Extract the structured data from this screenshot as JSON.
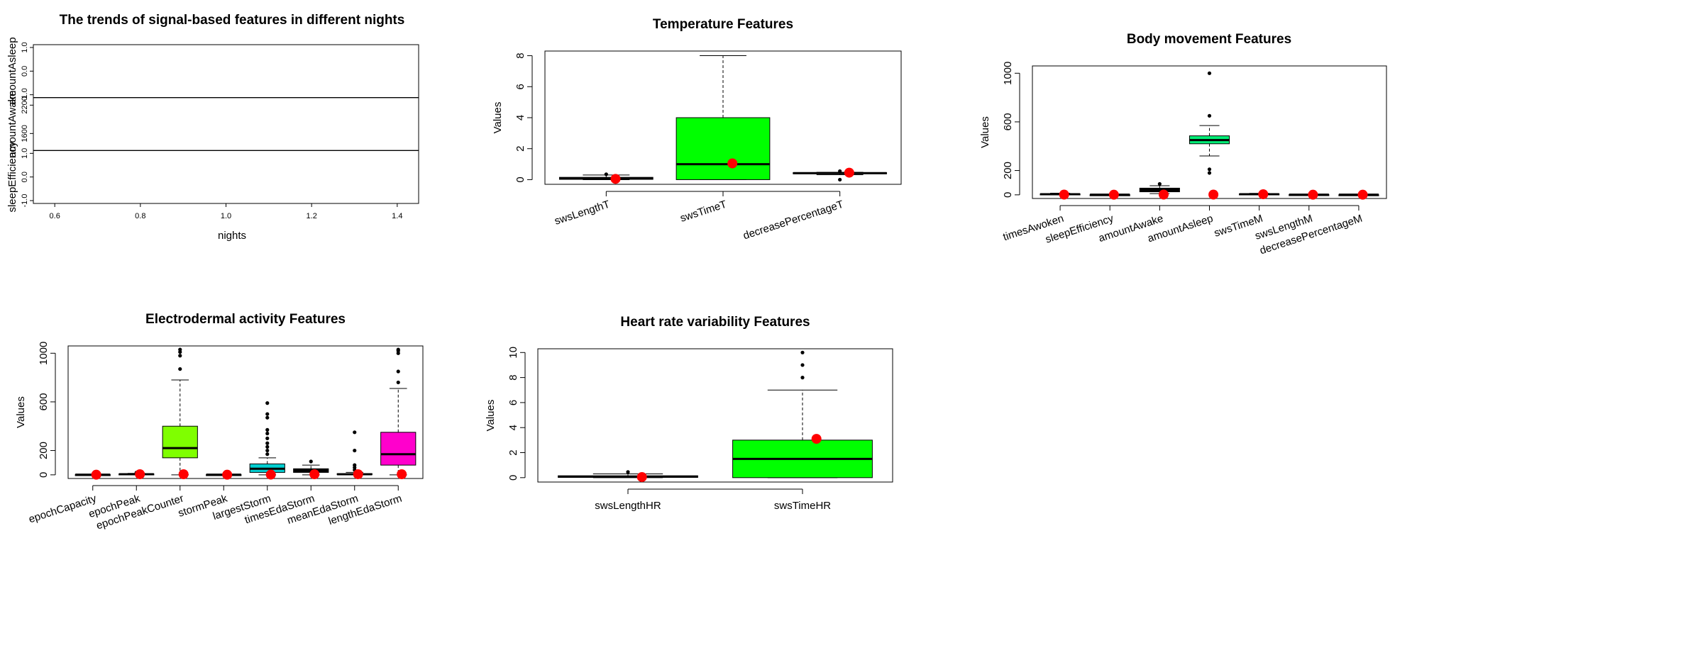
{
  "chart_data": [
    {
      "type": "line",
      "title": "The trends of signal-based features in different nights",
      "xlabel": "nights",
      "x_ticks": [
        0.6,
        0.8,
        1.0,
        1.2,
        1.4
      ],
      "xlim": [
        0.55,
        1.45
      ],
      "panels": [
        {
          "ylabel": "amountAsleep",
          "y_ticks": [
            "-1.0",
            "0.0",
            "1.0"
          ],
          "ylim": [
            -1,
            1
          ]
        },
        {
          "ylabel": "amountAwake",
          "y_ticks": [
            "1600",
            "2200"
          ],
          "ylim": [
            1300,
            2300
          ]
        },
        {
          "ylabel": "sleepEfficiency",
          "y_ticks": [
            "-1.0",
            "0.0",
            "1.0"
          ],
          "ylim": [
            -1,
            1
          ]
        }
      ]
    },
    {
      "type": "box",
      "title": "Temperature Features",
      "ylabel": "Values",
      "y_ticks": [
        0,
        2,
        4,
        6,
        8
      ],
      "ylim": [
        -0.3,
        8.3
      ],
      "categories": [
        "swsLengthT",
        "swsTimeT",
        "decreasePercentageT"
      ],
      "colors": [
        "#000000",
        "#00ff00",
        "#000000"
      ],
      "boxes": [
        {
          "min": 0.0,
          "q1": 0.02,
          "median": 0.08,
          "q3": 0.15,
          "max": 0.3,
          "outliers": [
            0.35
          ],
          "mean": 0.05
        },
        {
          "min": 0.0,
          "q1": 0.0,
          "median": 1.0,
          "q3": 4.0,
          "max": 8.0,
          "outliers": [],
          "mean": 1.05
        },
        {
          "min": 0.32,
          "q1": 0.38,
          "median": 0.42,
          "q3": 0.45,
          "max": 0.48,
          "outliers": [
            0.0,
            0.55
          ],
          "mean": 0.45
        }
      ]
    },
    {
      "type": "box",
      "title": "Body movement Features",
      "ylabel": "Values",
      "y_ticks": [
        0,
        200,
        600,
        1000
      ],
      "ylim": [
        -30,
        1060
      ],
      "categories": [
        "timesAwoken",
        "sleepEfficiency",
        "amountAwake",
        "amountAsleep",
        "swsTimeM",
        "swsLengthM",
        "decreasePercentageM"
      ],
      "colors": [
        "#000000",
        "#000000",
        "#000000",
        "#00ee76",
        "#000000",
        "#000000",
        "#000000"
      ],
      "boxes": [
        {
          "min": 0,
          "q1": 2,
          "median": 5,
          "q3": 8,
          "max": 14,
          "outliers": [],
          "mean": 2
        },
        {
          "min": 0,
          "q1": 0,
          "median": 1,
          "q3": 1,
          "max": 1,
          "outliers": [],
          "mean": 1
        },
        {
          "min": 10,
          "q1": 25,
          "median": 40,
          "q3": 55,
          "max": 75,
          "outliers": [
            90
          ],
          "mean": 2
        },
        {
          "min": 320,
          "q1": 420,
          "median": 450,
          "q3": 485,
          "max": 570,
          "outliers": [
            180,
            210,
            650,
            1000
          ],
          "mean": 2
        },
        {
          "min": 0,
          "q1": 2,
          "median": 5,
          "q3": 8,
          "max": 12,
          "outliers": [],
          "mean": 5
        },
        {
          "min": 0,
          "q1": 0,
          "median": 1,
          "q3": 2,
          "max": 3,
          "outliers": [],
          "mean": 1
        },
        {
          "min": 0,
          "q1": 0,
          "median": 1,
          "q3": 1,
          "max": 2,
          "outliers": [],
          "mean": 1
        }
      ]
    },
    {
      "type": "box",
      "title": "Electrodermal activity Features",
      "ylabel": "Values",
      "y_ticks": [
        0,
        200,
        600,
        1000
      ],
      "ylim": [
        -30,
        1060
      ],
      "categories": [
        "epochCapacity",
        "epochPeak",
        "epochPeakCounter",
        "stormPeak",
        "largestStorm",
        "timesEdaStorm",
        "meanEdaStorm",
        "lengthEdaStorm"
      ],
      "colors": [
        "#000000",
        "#000000",
        "#7fff00",
        "#000000",
        "#00ced1",
        "#000000",
        "#000000",
        "#ff00cc"
      ],
      "boxes": [
        {
          "min": 0,
          "q1": 0,
          "median": 1,
          "q3": 2,
          "max": 4,
          "outliers": [],
          "mean": 1
        },
        {
          "min": 0,
          "q1": 2,
          "median": 5,
          "q3": 8,
          "max": 12,
          "outliers": [
            18
          ],
          "mean": 5
        },
        {
          "min": 0,
          "q1": 140,
          "median": 220,
          "q3": 400,
          "max": 780,
          "outliers": [
            870,
            980,
            1010,
            1030
          ],
          "mean": 5
        },
        {
          "min": 0,
          "q1": 0,
          "median": 1,
          "q3": 2,
          "max": 3,
          "outliers": [],
          "mean": 1
        },
        {
          "min": 0,
          "q1": 20,
          "median": 50,
          "q3": 90,
          "max": 140,
          "outliers": [
            170,
            200,
            230,
            260,
            300,
            340,
            370,
            470,
            500,
            590
          ],
          "mean": 2
        },
        {
          "min": 0,
          "q1": 20,
          "median": 35,
          "q3": 50,
          "max": 80,
          "outliers": [
            110
          ],
          "mean": 5
        },
        {
          "min": 0,
          "q1": 2,
          "median": 5,
          "q3": 10,
          "max": 20,
          "outliers": [
            40,
            60,
            80,
            200,
            350
          ],
          "mean": 5
        },
        {
          "min": 0,
          "q1": 80,
          "median": 170,
          "q3": 350,
          "max": 710,
          "outliers": [
            760,
            850,
            1000,
            1020,
            1030
          ],
          "mean": 5
        }
      ]
    },
    {
      "type": "box",
      "title": "Heart rate variability Features",
      "ylabel": "Values",
      "y_ticks": [
        0,
        2,
        4,
        6,
        8,
        10
      ],
      "ylim": [
        -0.35,
        10.3
      ],
      "categories": [
        "swsLengthHR",
        "swsTimeHR"
      ],
      "colors": [
        "#000000",
        "#00ff00"
      ],
      "boxes": [
        {
          "min": 0.0,
          "q1": 0.02,
          "median": 0.08,
          "q3": 0.15,
          "max": 0.3,
          "outliers": [
            0.45
          ],
          "mean": 0.05
        },
        {
          "min": 0.0,
          "q1": 0.0,
          "median": 1.5,
          "q3": 3.0,
          "max": 7.0,
          "outliers": [
            8.0,
            9.0,
            10.0
          ],
          "mean": 3.1
        }
      ]
    }
  ]
}
